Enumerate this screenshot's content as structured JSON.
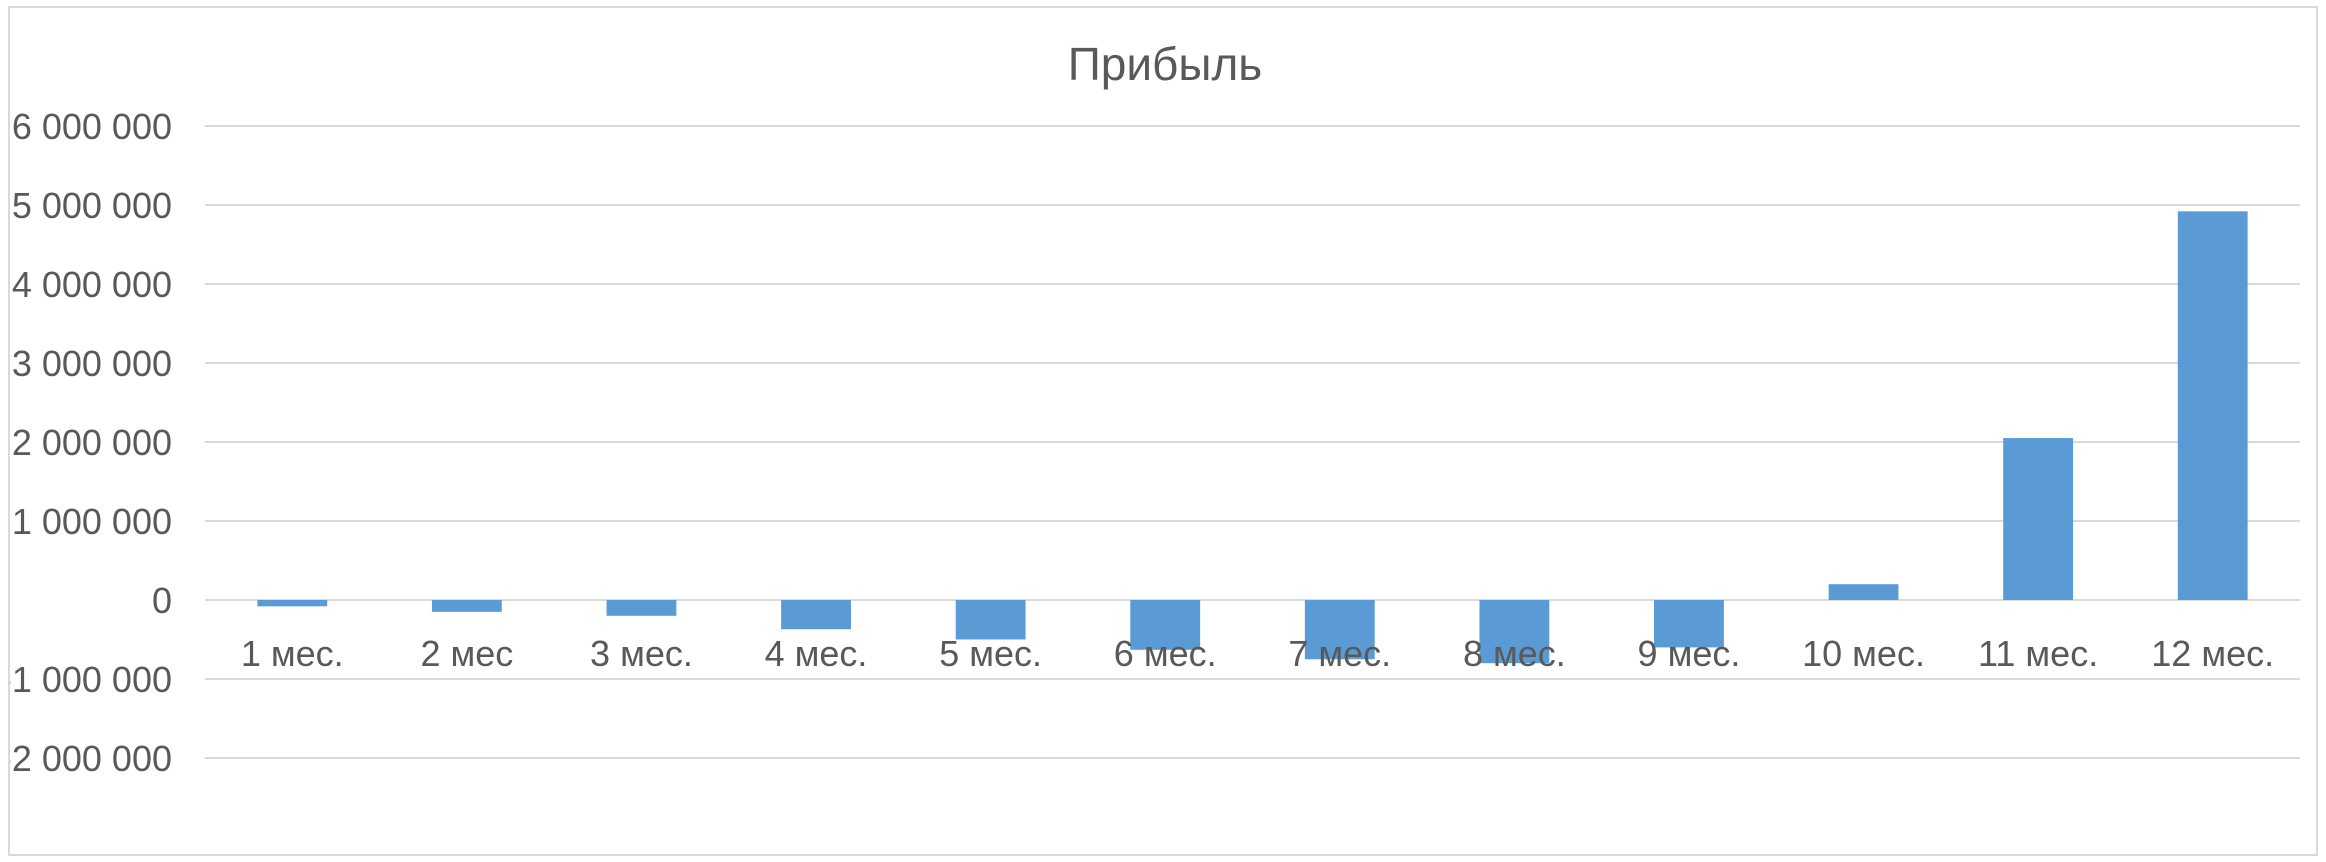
{
  "chart_data": {
    "type": "bar",
    "title": "Прибыль",
    "xlabel": "",
    "ylabel": "",
    "categories": [
      "1 мес.",
      "2 мес",
      "3 мес.",
      "4 мес.",
      "5 мес.",
      "6 мес.",
      "7 мес.",
      "8 мес.",
      "9 мес.",
      "10 мес.",
      "11 мес.",
      "12 мес."
    ],
    "values": [
      -80000,
      -150000,
      -200000,
      -370000,
      -500000,
      -630000,
      -750000,
      -800000,
      -600000,
      200000,
      2050000,
      4920000
    ],
    "ylim": [
      -2000000,
      6000000
    ],
    "yticks": [
      6000000,
      5000000,
      4000000,
      3000000,
      2000000,
      1000000,
      0,
      -1000000,
      -2000000
    ],
    "ytick_labels": [
      "6 000 000",
      "5 000 000",
      "4 000 000",
      "3 000 000",
      "2 000 000",
      "1 000 000",
      "0",
      "-1 000 000",
      "-2 000 000"
    ],
    "grid": true,
    "legend": "none",
    "bar_color": "#5b9bd5"
  }
}
